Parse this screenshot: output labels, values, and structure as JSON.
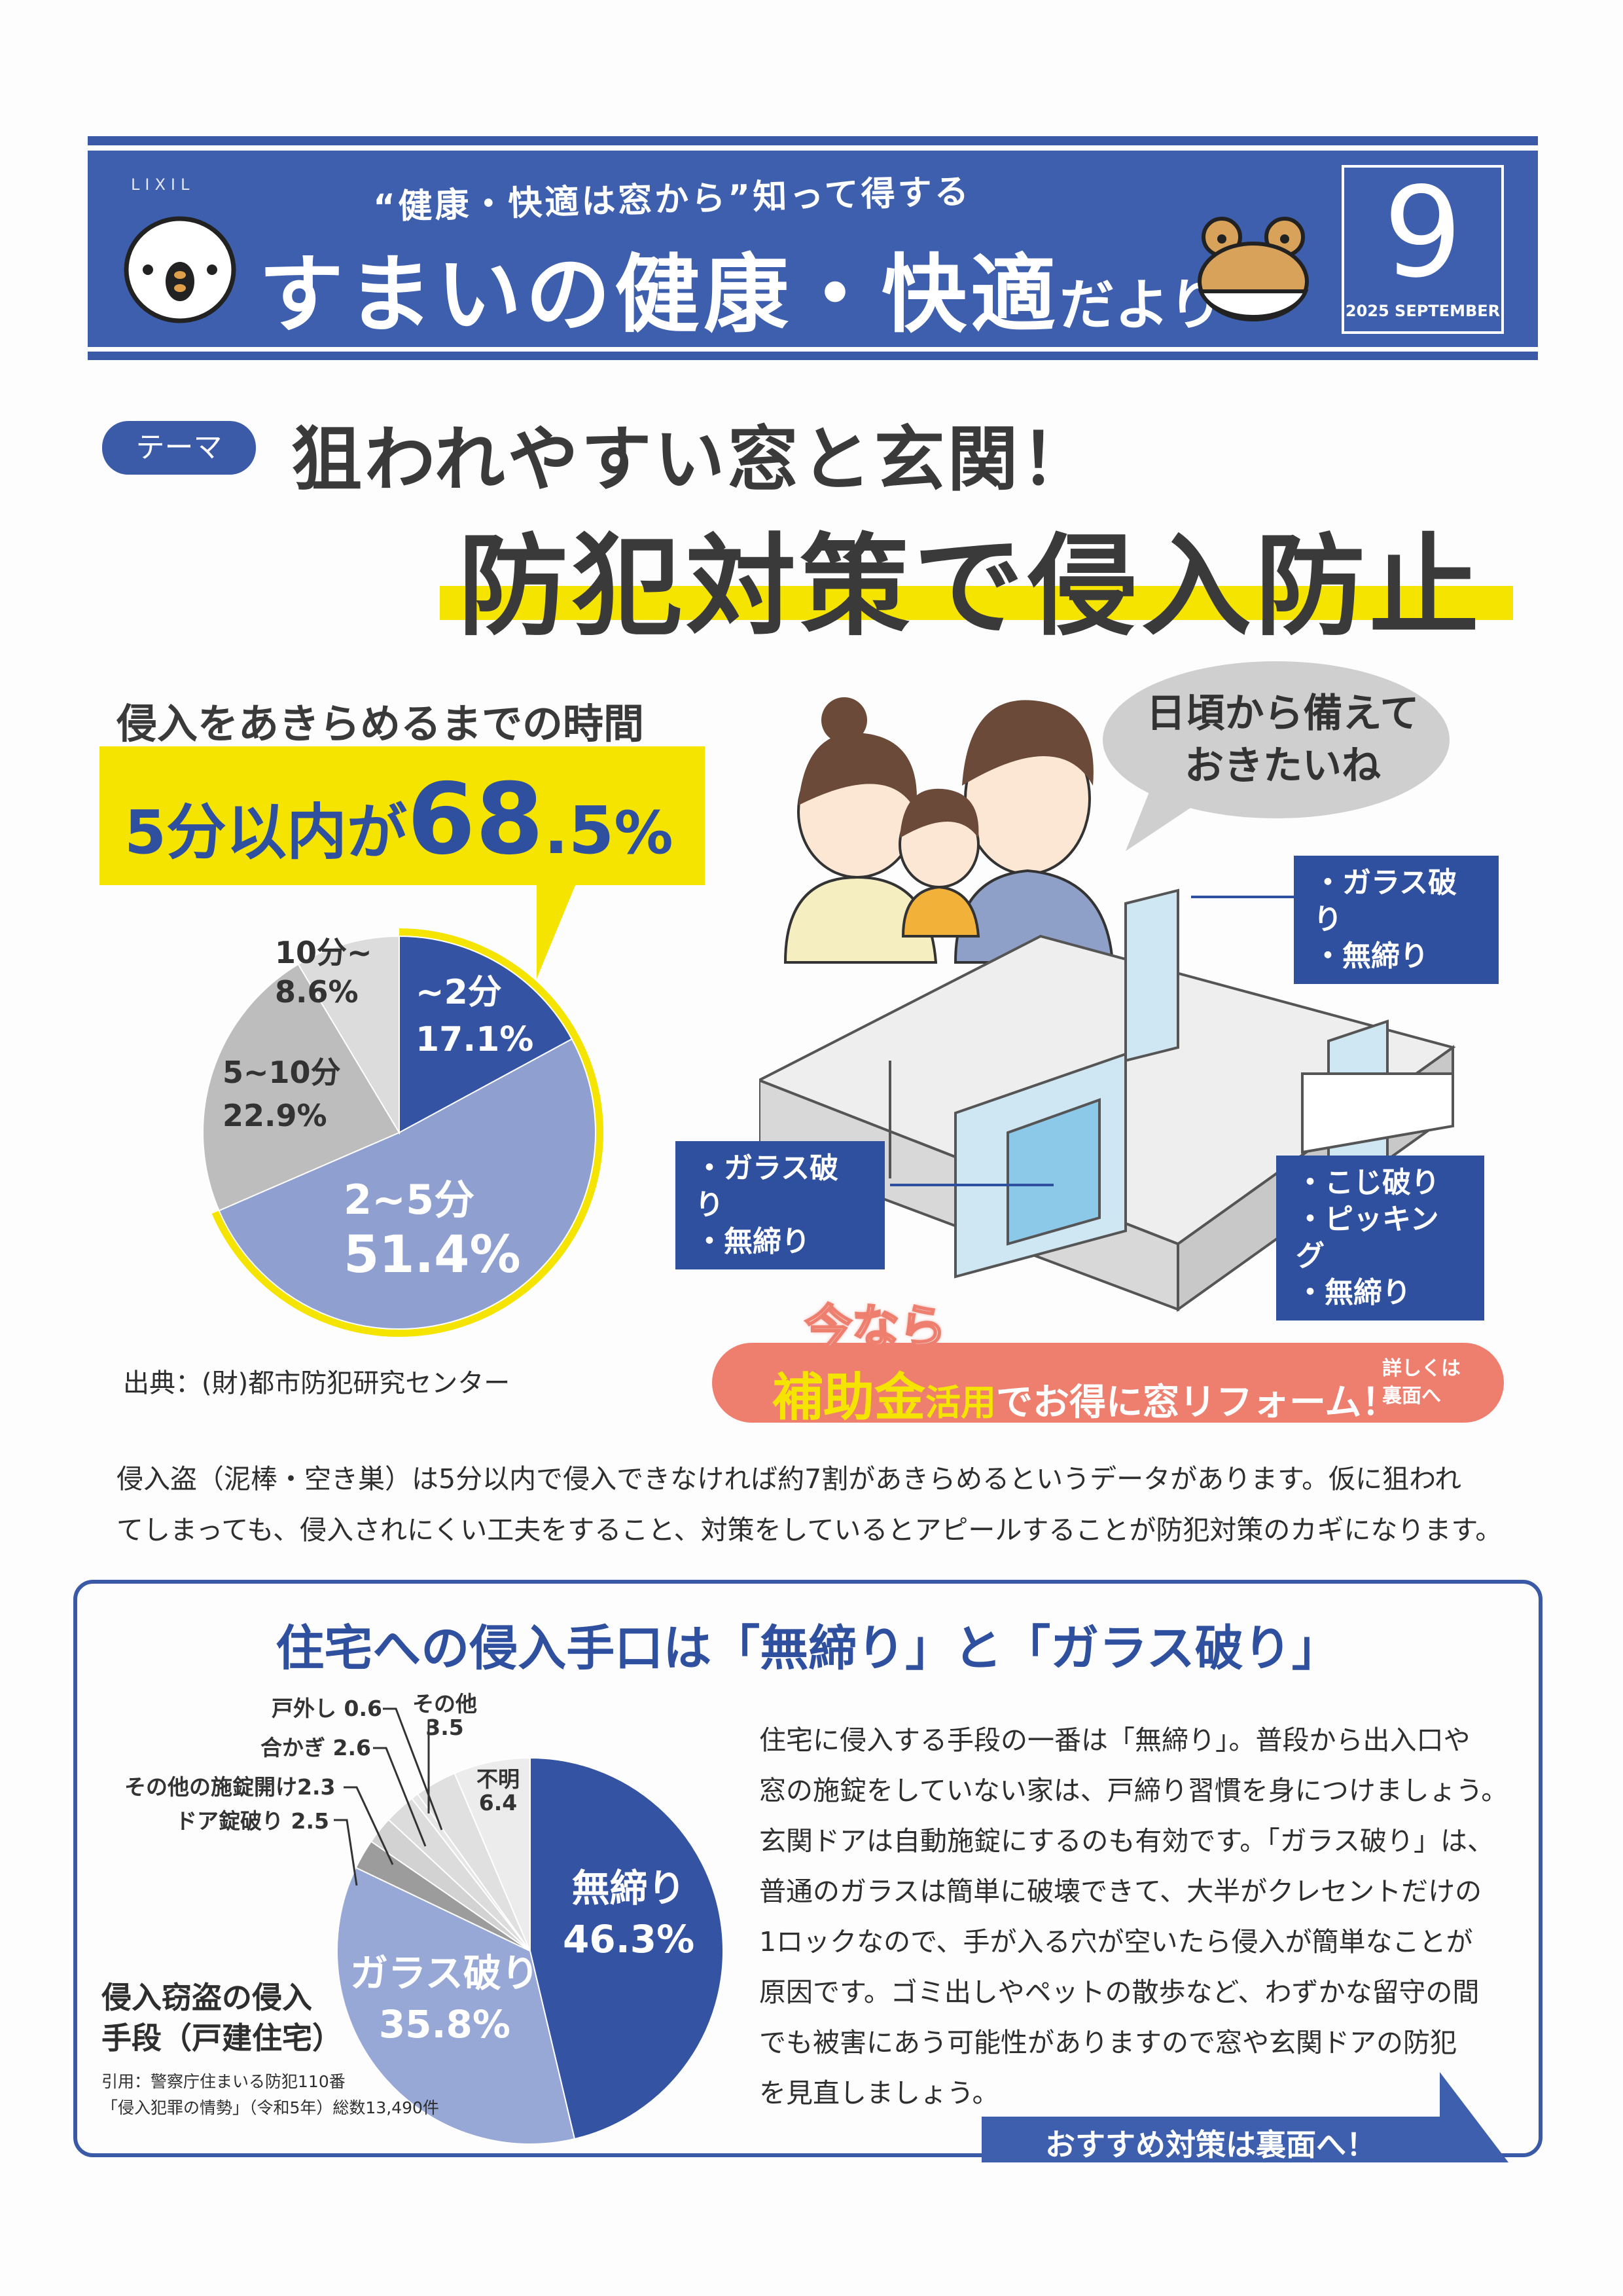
{
  "header": {
    "brand": "LIXIL",
    "subtitle": "“健康・快適は窓から”知って得する",
    "title_main": "すまいの健康・快適",
    "title_suffix": "だより",
    "issue_number": "9",
    "issue_date": "2025 SEPTEMBER",
    "colors": {
      "band": "#3d5fae",
      "accent_yellow": "#f5e400"
    }
  },
  "theme": {
    "badge": "テーマ",
    "headline": "狙われやすい窓と玄関！",
    "main_title": "防犯対策で侵入防止"
  },
  "stat": {
    "heading": "侵入をあきらめるまでの時間",
    "highlight_prefix": "5分以内が",
    "highlight_value": "68",
    "highlight_decimal": ".5",
    "highlight_unit": "%",
    "source": "出典：(財)都市防犯研究センター"
  },
  "illustration": {
    "speech": [
      "日頃から備えて",
      "おきたいね"
    ],
    "callouts": [
      {
        "items": [
          "・ガラス破り",
          "・無締り"
        ]
      },
      {
        "items": [
          "・ガラス破り",
          "・無締り"
        ]
      },
      {
        "items": [
          "・こじ破り",
          "・ピッキング",
          "・無締り"
        ]
      }
    ]
  },
  "promo": {
    "tag": "今なら",
    "highlight": "補助金",
    "highlight2": "活用",
    "text": "でお得に窓リフォーム！",
    "side": [
      "詳しくは",
      "裏面へ"
    ],
    "color": "#ee7f6f"
  },
  "intro_paragraph": [
    "侵入盗（泥棒・空き巣）は5分以内で侵入できなければ約7割があきらめるというデータがあります。仮に狙われ",
    "てしまっても、侵入されにくい工夫をすること、対策をしているとアピールすることが防犯対策のカギになります。"
  ],
  "section2": {
    "title": "住宅への侵入手口は「無締り」と「ガラス破り」",
    "chart_caption": [
      "侵入窃盗の侵入",
      "手段（戸建住宅）"
    ],
    "citation": [
      "引用：警察庁住まいる防犯110番",
      "「侵入犯罪の情勢」（令和5年）総数13,490件"
    ],
    "body": [
      "住宅に侵入する手段の一番は「無締り」。普段から出入口や",
      "窓の施錠をしていない家は、戸締り習慣を身につけましょう。",
      "玄関ドアは自動施錠にするのも有効です。「ガラス破り」は、",
      "普通のガラスは簡単に破壊できて、大半がクレセントだけの",
      "1ロックなので、手が入る穴が空いたら侵入が簡単なことが",
      "原因です。ゴミ出しやペットの散歩など、わずかな留守の間",
      "でも被害にあう可能性がありますので窓や玄関ドアの防犯",
      "を見直しましょう。"
    ],
    "cta": "おすすめ対策は裏面へ！"
  },
  "chart_data": [
    {
      "type": "pie",
      "title": "侵入をあきらめるまでの時間",
      "slices": [
        {
          "label": "~2分",
          "value": 17.1,
          "display": "17.1%",
          "color": "#3553a3"
        },
        {
          "label": "2~5分",
          "value": 51.4,
          "display": "51.4%",
          "color": "#8e9fd0"
        },
        {
          "label": "5~10分",
          "value": 22.9,
          "display": "22.9%",
          "color": "#bdbdbd"
        },
        {
          "label": "10分~",
          "value": 8.6,
          "display": "8.6%",
          "color": "#dcdcdc"
        }
      ],
      "highlight_total": 68.5
    },
    {
      "type": "pie",
      "slices": [
        {
          "label": "無締り",
          "value": 46.3,
          "display": "46.3%",
          "color": "#3553a3"
        },
        {
          "label": "ガラス破り",
          "value": 35.8,
          "display": "35.8%",
          "color": "#97a8d6"
        },
        {
          "label": "ドア錠破り",
          "value": 2.5,
          "display": "2.5",
          "color": "#9c9c9c"
        },
        {
          "label": "その他の施錠開け",
          "value": 2.3,
          "display": "2.3",
          "color": "#d2d2d2"
        },
        {
          "label": "合かぎ",
          "value": 2.6,
          "display": "2.6",
          "color": "#dcdcdc"
        },
        {
          "label": "戸外し",
          "value": 0.6,
          "display": "0.6",
          "color": "#e6e6e6"
        },
        {
          "label": "その他",
          "value": 3.5,
          "display": "3.5",
          "color": "#e0e0e0"
        },
        {
          "label": "不明",
          "value": 6.4,
          "display": "6.4",
          "color": "#ececec"
        }
      ]
    }
  ]
}
